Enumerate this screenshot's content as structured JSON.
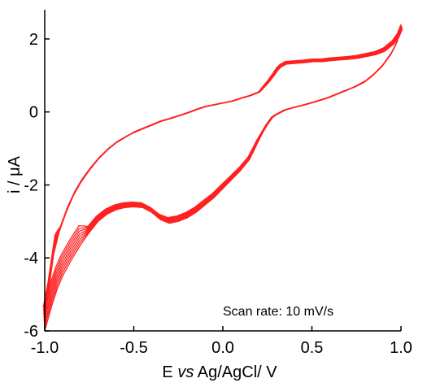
{
  "chart_data": {
    "type": "line",
    "title": "",
    "xlabel_parts": [
      "E ",
      "vs",
      " Ag/AgCl/ V"
    ],
    "ylabel": "i / μA",
    "xlim": [
      -1.0,
      1.0
    ],
    "ylim": [
      -6,
      2.8
    ],
    "x_tick_labels": [
      "-1.0",
      "-0.5",
      "0.0",
      "0.5",
      "1.0"
    ],
    "x_tick_values": [
      -1.0,
      -0.5,
      0.0,
      0.5,
      1.0
    ],
    "y_tick_labels": [
      "2",
      "0",
      "-2",
      "-4",
      "-6"
    ],
    "y_tick_values": [
      2,
      0,
      -2,
      -4,
      -6
    ],
    "grid": false,
    "annotation": "Scan rate: 10 mV/s",
    "colors": {
      "trace": "#ff2020",
      "axis": "#000000"
    },
    "series": [
      {
        "cycles": 8,
        "x": [
          1.0,
          0.98,
          0.95,
          0.9,
          0.85,
          0.8,
          0.75,
          0.7,
          0.65,
          0.6,
          0.55,
          0.5,
          0.45,
          0.4,
          0.35,
          0.3,
          0.28,
          0.25,
          0.22,
          0.2,
          0.15,
          0.1,
          0.05,
          0.0,
          -0.05,
          -0.1,
          -0.15,
          -0.2,
          -0.25,
          -0.3,
          -0.35,
          -0.4,
          -0.45,
          -0.5,
          -0.55,
          -0.6,
          -0.65,
          -0.7,
          -0.75,
          -0.8,
          -0.85,
          -0.9,
          -0.93,
          -0.96,
          -0.98,
          -1.0,
          -0.99,
          -0.97,
          -0.95,
          -0.92,
          -0.88,
          -0.84,
          -0.8,
          -0.75,
          -0.7,
          -0.65,
          -0.6,
          -0.55,
          -0.5,
          -0.45,
          -0.4,
          -0.35,
          -0.3,
          -0.25,
          -0.2,
          -0.15,
          -0.1,
          -0.05,
          0.0,
          0.05,
          0.1,
          0.15,
          0.2,
          0.25,
          0.28,
          0.3,
          0.32,
          0.35,
          0.4,
          0.45,
          0.5,
          0.55,
          0.6,
          0.65,
          0.7,
          0.75,
          0.8,
          0.85,
          0.9,
          0.95,
          0.98,
          1.0
        ],
        "y": [
          2.3,
          1.95,
          1.65,
          1.3,
          1.05,
          0.85,
          0.72,
          0.6,
          0.5,
          0.4,
          0.32,
          0.25,
          0.18,
          0.12,
          0.05,
          -0.08,
          -0.15,
          -0.35,
          -0.6,
          -0.8,
          -1.3,
          -1.6,
          -1.85,
          -2.1,
          -2.35,
          -2.55,
          -2.75,
          -2.9,
          -3.0,
          -3.05,
          -2.95,
          -2.75,
          -2.62,
          -2.6,
          -2.62,
          -2.68,
          -2.8,
          -3.0,
          -3.3,
          -3.65,
          -4.05,
          -4.5,
          -4.85,
          -5.3,
          -5.65,
          -6.0,
          -5.3,
          -4.6,
          -3.9,
          -3.3,
          -2.75,
          -2.3,
          -1.95,
          -1.6,
          -1.3,
          -1.05,
          -0.85,
          -0.7,
          -0.55,
          -0.45,
          -0.35,
          -0.25,
          -0.18,
          -0.1,
          -0.02,
          0.07,
          0.15,
          0.2,
          0.25,
          0.3,
          0.38,
          0.45,
          0.55,
          0.85,
          1.05,
          1.2,
          1.3,
          1.38,
          1.4,
          1.42,
          1.45,
          1.45,
          1.48,
          1.5,
          1.52,
          1.55,
          1.6,
          1.65,
          1.75,
          1.95,
          2.15,
          2.4
        ]
      }
    ]
  }
}
